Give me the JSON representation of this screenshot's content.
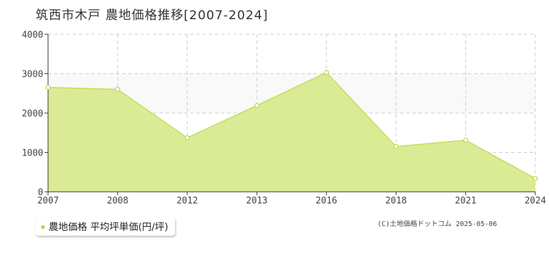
{
  "title": "筑西市木戸 農地価格推移[2007-2024]",
  "legend": {
    "label": "農地価格 平均坪単価(円/坪)"
  },
  "copyright": "(C)土地価格ドットコム 2025-05-06",
  "colors": {
    "fill": "#dbeb95",
    "line": "#bedf5a",
    "band": "#f9f9f9",
    "grid": "#cccccc",
    "marker": "#b5d94f"
  },
  "chart_data": {
    "type": "area",
    "x": [
      "2007",
      "2008",
      "2012",
      "2013",
      "2016",
      "2018",
      "2021",
      "2024"
    ],
    "series": [
      {
        "values": [
          2650,
          2600,
          1370,
          2190,
          3030,
          1150,
          1310,
          340
        ]
      }
    ],
    "ylim": [
      0,
      4000
    ],
    "yticks": [
      0,
      1000,
      2000,
      3000,
      4000
    ],
    "grid": true,
    "legend_position": "bottom-left"
  }
}
